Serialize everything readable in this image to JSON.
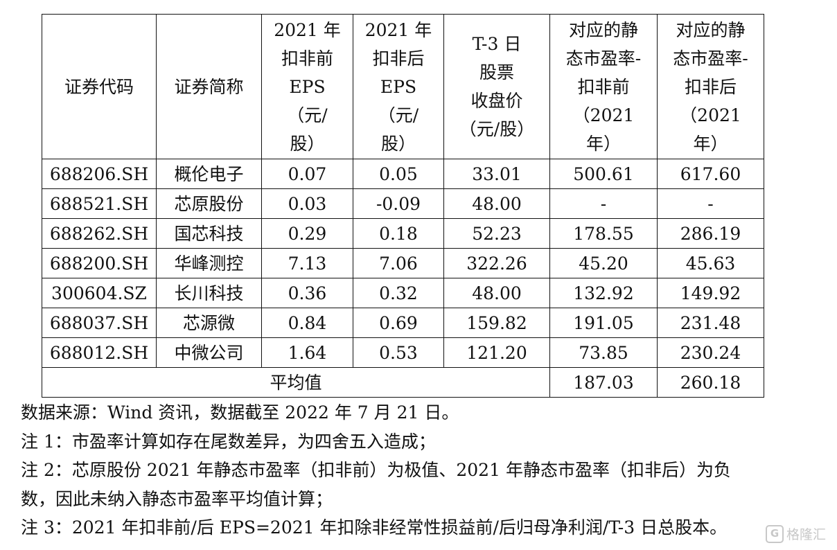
{
  "table": {
    "headers": [
      "证券代码",
      "证券简称",
      "2021 年\n扣非前\nEPS\n（元/\n股）",
      "2021 年\n扣非后\nEPS\n（元/\n股）",
      "T-3 日\n股票\n收盘价\n（元/股）",
      "对应的静\n态市盈率-\n扣非前\n（2021\n年）",
      "对应的静\n态市盈率-\n扣非后\n（2021\n年）"
    ],
    "rows": [
      [
        "688206.SH",
        "概伦电子",
        "0.07",
        "0.05",
        "33.01",
        "500.61",
        "617.60"
      ],
      [
        "688521.SH",
        "芯原股份",
        "0.03",
        "-0.09",
        "48.00",
        "-",
        "-"
      ],
      [
        "688262.SH",
        "国芯科技",
        "0.29",
        "0.18",
        "52.23",
        "178.55",
        "286.19"
      ],
      [
        "688200.SH",
        "华峰测控",
        "7.13",
        "7.06",
        "322.26",
        "45.20",
        "45.63"
      ],
      [
        "300604.SZ",
        "长川科技",
        "0.36",
        "0.32",
        "48.00",
        "132.92",
        "149.92"
      ],
      [
        "688037.SH",
        "芯源微",
        "0.84",
        "0.69",
        "159.82",
        "191.05",
        "231.48"
      ],
      [
        "688012.SH",
        "中微公司",
        "1.64",
        "0.53",
        "121.20",
        "73.85",
        "230.24"
      ]
    ],
    "average": {
      "label": "平均值",
      "pe_before": "187.03",
      "pe_after": "260.18"
    }
  },
  "notes": [
    "数据来源：Wind 资讯，数据截至 2022 年 7 月 21 日。",
    "注 1：市盈率计算如存在尾数差异，为四舍五入造成；",
    "注 2：芯原股份 2021 年静态市盈率（扣非前）为极值、2021 年静态市盈率（扣非后）为负",
    "数，因此未纳入静态市盈率平均值计算；",
    "注 3：2021 年扣非前/后 EPS=2021 年扣除非经常性损益前/后归母净利润/T-3 日总股本。"
  ],
  "watermark": {
    "logo_glyph": "G",
    "text": "格隆汇"
  }
}
